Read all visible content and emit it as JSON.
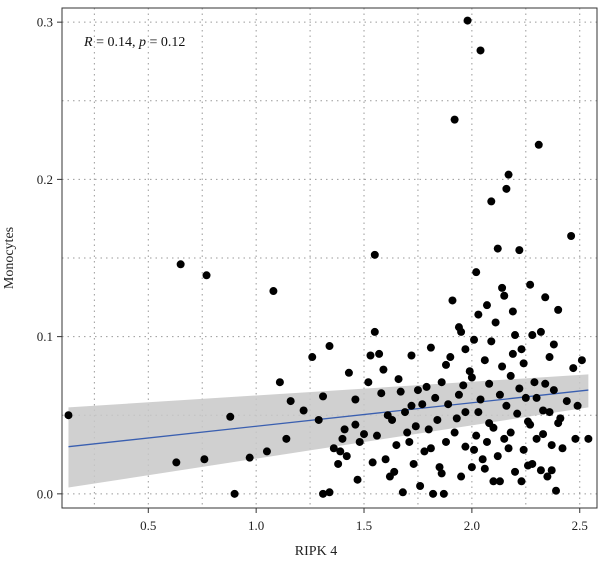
{
  "chart_data": {
    "type": "scatter",
    "xlabel": "RIPK 4",
    "ylabel": "Monocytes",
    "xlim": [
      0.1,
      2.58
    ],
    "ylim": [
      -0.009,
      0.309
    ],
    "xticks": [
      0.5,
      1.0,
      1.5,
      2.0,
      2.5
    ],
    "xtick_labels": [
      "0.5",
      "1.0",
      "1.5",
      "2.0",
      "2.5"
    ],
    "yticks": [
      0.0,
      0.1,
      0.2,
      0.3
    ],
    "ytick_labels": [
      "0.0",
      "0.1",
      "0.2",
      "0.3"
    ],
    "annotation": {
      "r_label": "R",
      "r_text": " = 0.14, ",
      "p_label": "p",
      "p_text": " = 0.12"
    },
    "grid": true,
    "colors": {
      "points": "#000000",
      "fit_line": "#3a5fb0",
      "confidence_band": "#c8c8c8",
      "grid": "#9a9a9a"
    },
    "fit": {
      "x": [
        0.13,
        2.54
      ],
      "y": [
        0.03,
        0.066
      ]
    },
    "confidence_band": {
      "x": [
        0.13,
        2.54
      ],
      "upper": [
        0.055,
        0.076
      ],
      "lower": [
        0.004,
        0.055
      ]
    },
    "points": [
      [
        0.13,
        0.05
      ],
      [
        0.63,
        0.02
      ],
      [
        0.65,
        0.146
      ],
      [
        0.76,
        0.022
      ],
      [
        0.77,
        0.139
      ],
      [
        0.88,
        0.049
      ],
      [
        0.9,
        0.0
      ],
      [
        0.97,
        0.023
      ],
      [
        1.05,
        0.027
      ],
      [
        1.08,
        0.129
      ],
      [
        1.11,
        0.071
      ],
      [
        1.14,
        0.035
      ],
      [
        1.16,
        0.059
      ],
      [
        1.22,
        0.053
      ],
      [
        1.26,
        0.087
      ],
      [
        1.29,
        0.047
      ],
      [
        1.31,
        0.062
      ],
      [
        1.31,
        0.0
      ],
      [
        1.34,
        0.001
      ],
      [
        1.34,
        0.094
      ],
      [
        1.36,
        0.029
      ],
      [
        1.38,
        0.019
      ],
      [
        1.4,
        0.035
      ],
      [
        1.41,
        0.041
      ],
      [
        1.43,
        0.077
      ],
      [
        1.46,
        0.06
      ],
      [
        1.47,
        0.009
      ],
      [
        1.48,
        0.033
      ],
      [
        1.5,
        0.038
      ],
      [
        1.52,
        0.071
      ],
      [
        1.53,
        0.088
      ],
      [
        1.55,
        0.152
      ],
      [
        1.55,
        0.103
      ],
      [
        1.57,
        0.089
      ],
      [
        1.58,
        0.064
      ],
      [
        1.6,
        0.022
      ],
      [
        1.62,
        0.011
      ],
      [
        1.63,
        0.047
      ],
      [
        1.65,
        0.031
      ],
      [
        1.66,
        0.073
      ],
      [
        1.68,
        0.001
      ],
      [
        1.7,
        0.039
      ],
      [
        1.72,
        0.056
      ],
      [
        1.73,
        0.019
      ],
      [
        1.75,
        0.066
      ],
      [
        1.76,
        0.005
      ],
      [
        1.78,
        0.027
      ],
      [
        1.8,
        0.041
      ],
      [
        1.81,
        0.093
      ],
      [
        1.82,
        0.0
      ],
      [
        1.83,
        0.061
      ],
      [
        1.85,
        0.017
      ],
      [
        1.86,
        0.071
      ],
      [
        1.87,
        0.0
      ],
      [
        1.88,
        0.033
      ],
      [
        1.9,
        0.087
      ],
      [
        1.91,
        0.123
      ],
      [
        1.92,
        0.238
      ],
      [
        1.93,
        0.048
      ],
      [
        1.94,
        0.106
      ],
      [
        1.95,
        0.011
      ],
      [
        1.96,
        0.069
      ],
      [
        1.97,
        0.03
      ],
      [
        1.98,
        0.301
      ],
      [
        1.99,
        0.078
      ],
      [
        2.0,
        0.017
      ],
      [
        2.01,
        0.098
      ],
      [
        2.02,
        0.141
      ],
      [
        2.03,
        0.052
      ],
      [
        2.04,
        0.282
      ],
      [
        2.05,
        0.022
      ],
      [
        2.06,
        0.085
      ],
      [
        2.07,
        0.12
      ],
      [
        2.08,
        0.045
      ],
      [
        2.09,
        0.186
      ],
      [
        2.1,
        0.008
      ],
      [
        2.11,
        0.109
      ],
      [
        2.12,
        0.156
      ],
      [
        2.13,
        0.063
      ],
      [
        2.14,
        0.131
      ],
      [
        2.15,
        0.035
      ],
      [
        2.16,
        0.194
      ],
      [
        2.17,
        0.203
      ],
      [
        2.18,
        0.075
      ],
      [
        2.19,
        0.116
      ],
      [
        2.2,
        0.014
      ],
      [
        2.21,
        0.051
      ],
      [
        2.22,
        0.155
      ],
      [
        2.23,
        0.092
      ],
      [
        2.24,
        0.028
      ],
      [
        2.25,
        0.061
      ],
      [
        2.26,
        0.046
      ],
      [
        2.27,
        0.133
      ],
      [
        2.28,
        0.019
      ],
      [
        2.29,
        0.071
      ],
      [
        2.3,
        0.035
      ],
      [
        2.31,
        0.222
      ],
      [
        2.32,
        0.103
      ],
      [
        2.33,
        0.053
      ],
      [
        2.34,
        0.125
      ],
      [
        2.35,
        0.011
      ],
      [
        2.36,
        0.087
      ],
      [
        2.37,
        0.031
      ],
      [
        2.38,
        0.066
      ],
      [
        2.39,
        0.002
      ],
      [
        2.4,
        0.117
      ],
      [
        2.41,
        0.048
      ],
      [
        2.42,
        0.029
      ],
      [
        2.44,
        0.059
      ],
      [
        2.46,
        0.164
      ],
      [
        2.47,
        0.08
      ],
      [
        2.48,
        0.035
      ],
      [
        2.49,
        0.056
      ],
      [
        2.51,
        0.085
      ],
      [
        2.54,
        0.035
      ],
      [
        1.42,
        0.024
      ],
      [
        1.56,
        0.037
      ],
      [
        1.59,
        0.079
      ],
      [
        1.64,
        0.014
      ],
      [
        1.69,
        0.052
      ],
      [
        1.71,
        0.033
      ],
      [
        1.74,
        0.043
      ],
      [
        1.77,
        0.057
      ],
      [
        1.79,
        0.068
      ],
      [
        1.84,
        0.047
      ],
      [
        1.86,
        0.013
      ],
      [
        1.89,
        0.057
      ],
      [
        1.92,
        0.039
      ],
      [
        1.94,
        0.063
      ],
      [
        1.97,
        0.052
      ],
      [
        2.0,
        0.074
      ],
      [
        2.02,
        0.037
      ],
      [
        2.04,
        0.06
      ],
      [
        2.06,
        0.016
      ],
      [
        2.08,
        0.07
      ],
      [
        2.1,
        0.042
      ],
      [
        2.12,
        0.024
      ],
      [
        2.14,
        0.081
      ],
      [
        2.16,
        0.056
      ],
      [
        2.18,
        0.039
      ],
      [
        2.2,
        0.101
      ],
      [
        2.22,
        0.067
      ],
      [
        2.24,
        0.083
      ],
      [
        2.26,
        0.018
      ],
      [
        2.28,
        0.101
      ],
      [
        2.3,
        0.061
      ],
      [
        2.32,
        0.015
      ],
      [
        2.34,
        0.07
      ],
      [
        2.36,
        0.052
      ],
      [
        2.38,
        0.095
      ],
      [
        2.4,
        0.045
      ],
      [
        1.97,
        0.092
      ],
      [
        2.03,
        0.114
      ],
      [
        2.09,
        0.097
      ],
      [
        2.15,
        0.126
      ],
      [
        2.19,
        0.089
      ],
      [
        1.81,
        0.029
      ],
      [
        1.88,
        0.082
      ],
      [
        1.95,
        0.103
      ],
      [
        2.01,
        0.028
      ],
      [
        2.07,
        0.033
      ],
      [
        2.13,
        0.008
      ],
      [
        2.17,
        0.029
      ],
      [
        2.23,
        0.008
      ],
      [
        2.27,
        0.044
      ],
      [
        2.33,
        0.038
      ],
      [
        2.37,
        0.015
      ],
      [
        1.72,
        0.088
      ],
      [
        1.67,
        0.065
      ],
      [
        1.61,
        0.05
      ],
      [
        1.54,
        0.02
      ],
      [
        1.46,
        0.044
      ],
      [
        1.39,
        0.027
      ]
    ]
  }
}
